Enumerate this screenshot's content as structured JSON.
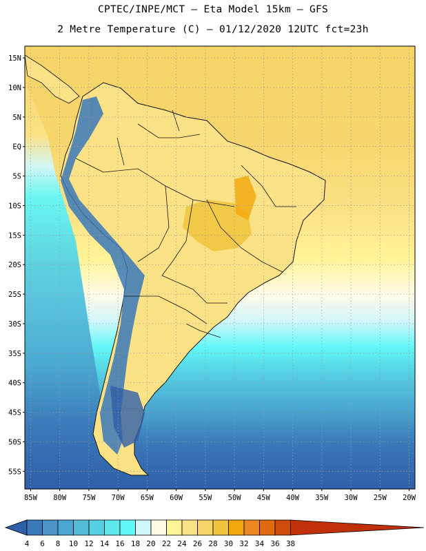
{
  "header": {
    "line1": "CPTEC/INPE/MCT –  Eta Model 15km – GFS",
    "line2": "2 Metre Temperature (C) – 01/12/2020 12UTC fct=23h"
  },
  "axes": {
    "lat_labels": [
      "15N",
      "10N",
      "5N",
      "EQ",
      "5S",
      "10S",
      "15S",
      "20S",
      "25S",
      "30S",
      "35S",
      "40S",
      "45S",
      "50S",
      "55S"
    ],
    "lon_labels": [
      "85W",
      "80W",
      "75W",
      "70W",
      "65W",
      "60W",
      "55W",
      "50W",
      "45W",
      "40W",
      "35W",
      "30W",
      "25W",
      "20W"
    ]
  },
  "colorbar": {
    "labels": [
      "4",
      "6",
      "8",
      "10",
      "12",
      "14",
      "16",
      "18",
      "20",
      "22",
      "24",
      "26",
      "28",
      "30",
      "32",
      "34",
      "36",
      "38"
    ],
    "colors": [
      "#2f5fa8",
      "#3a78b8",
      "#4a94c8",
      "#4aa6d0",
      "#55bcd8",
      "#55cfe2",
      "#5ee8ee",
      "#62f8f8",
      "#d2f7fa",
      "#fffae6",
      "#fff496",
      "#fbe286",
      "#f6d467",
      "#f0c43c",
      "#f2a70c",
      "#ec8620",
      "#e06a0c",
      "#d04a0c",
      "#c0300a"
    ]
  },
  "map": {
    "projection": "lat-lon",
    "lat_range": [
      -58,
      17
    ],
    "lon_range": [
      -86,
      -19
    ],
    "grid": true,
    "colors": {
      "ocean_south_deep": "#2f5fa8",
      "ocean_south": "#4a94c8",
      "ocean_mid": "#55cfe2",
      "ocean_cyan": "#62f8f8",
      "ocean_pale": "#d2f7fa",
      "ocean_warm": "#fffae6",
      "ocean_tropical": "#f6d467",
      "land_warm": "#fbe286",
      "land_hot": "#f0c43c",
      "andes_cold": "#3a78b8",
      "border": "#111111"
    }
  }
}
